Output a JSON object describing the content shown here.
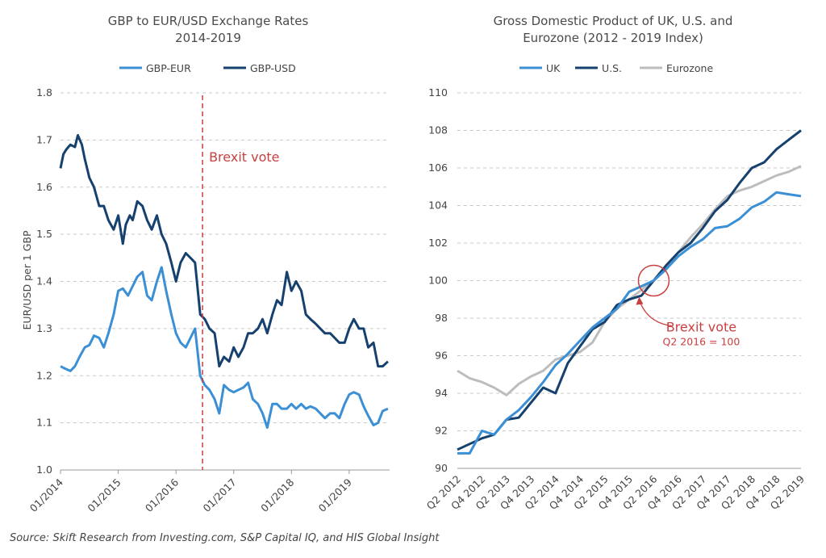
{
  "chart_data": [
    {
      "type": "line",
      "title": "GBP to EUR/USD Exchange Rates",
      "subtitle": "2014-2019",
      "ylabel": "EUR/USD per 1 GBP",
      "ylim": [
        1.0,
        1.8
      ],
      "yticks": [
        "1.0",
        "1.1",
        "1.2",
        "1.3",
        "1.4",
        "1.5",
        "1.6",
        "1.7",
        "1.8"
      ],
      "xticks": [
        {
          "label": "01/2014",
          "x": 2014.0
        },
        {
          "label": "01/2015",
          "x": 2015.0
        },
        {
          "label": "01/2016",
          "x": 2016.0
        },
        {
          "label": "01/2017",
          "x": 2017.0
        },
        {
          "label": "01/2018",
          "x": 2018.0
        },
        {
          "label": "01/2019",
          "x": 2019.0
        }
      ],
      "xlim": [
        2014.0,
        2019.7
      ],
      "legend_position": "top",
      "annotation": {
        "text": "Brexit vote",
        "x": 2016.46,
        "color": "#c94040"
      },
      "series": [
        {
          "name": "GBP-EUR",
          "color": "#3b8fd5",
          "x": [
            2014.0,
            2014.08,
            2014.17,
            2014.25,
            2014.33,
            2014.42,
            2014.5,
            2014.58,
            2014.67,
            2014.75,
            2014.83,
            2014.92,
            2015.0,
            2015.08,
            2015.17,
            2015.25,
            2015.33,
            2015.42,
            2015.5,
            2015.58,
            2015.67,
            2015.75,
            2015.83,
            2015.92,
            2016.0,
            2016.08,
            2016.17,
            2016.25,
            2016.33,
            2016.42,
            2016.5,
            2016.58,
            2016.67,
            2016.75,
            2016.83,
            2016.92,
            2017.0,
            2017.08,
            2017.17,
            2017.25,
            2017.33,
            2017.42,
            2017.5,
            2017.58,
            2017.67,
            2017.75,
            2017.83,
            2017.92,
            2018.0,
            2018.08,
            2018.17,
            2018.25,
            2018.33,
            2018.42,
            2018.5,
            2018.58,
            2018.67,
            2018.75,
            2018.83,
            2018.92,
            2019.0,
            2019.08,
            2019.17,
            2019.25,
            2019.33,
            2019.42,
            2019.5,
            2019.58,
            2019.67
          ],
          "values": [
            1.22,
            1.215,
            1.21,
            1.22,
            1.24,
            1.26,
            1.265,
            1.285,
            1.28,
            1.26,
            1.29,
            1.33,
            1.38,
            1.385,
            1.37,
            1.39,
            1.41,
            1.42,
            1.37,
            1.36,
            1.4,
            1.43,
            1.38,
            1.33,
            1.29,
            1.27,
            1.26,
            1.28,
            1.3,
            1.2,
            1.18,
            1.17,
            1.15,
            1.12,
            1.18,
            1.17,
            1.165,
            1.17,
            1.175,
            1.185,
            1.15,
            1.14,
            1.12,
            1.09,
            1.14,
            1.14,
            1.13,
            1.13,
            1.14,
            1.13,
            1.14,
            1.13,
            1.135,
            1.13,
            1.12,
            1.11,
            1.12,
            1.12,
            1.11,
            1.14,
            1.16,
            1.165,
            1.16,
            1.135,
            1.115,
            1.095,
            1.1,
            1.125,
            1.13
          ]
        },
        {
          "name": "GBP-USD",
          "color": "#16416e",
          "x": [
            2014.0,
            2014.05,
            2014.1,
            2014.17,
            2014.25,
            2014.3,
            2014.37,
            2014.42,
            2014.5,
            2014.58,
            2014.67,
            2014.75,
            2014.83,
            2014.92,
            2015.0,
            2015.08,
            2015.13,
            2015.2,
            2015.25,
            2015.33,
            2015.42,
            2015.5,
            2015.58,
            2015.67,
            2015.75,
            2015.83,
            2015.92,
            2016.0,
            2016.08,
            2016.17,
            2016.25,
            2016.33,
            2016.42,
            2016.5,
            2016.58,
            2016.67,
            2016.75,
            2016.83,
            2016.92,
            2017.0,
            2017.08,
            2017.17,
            2017.25,
            2017.33,
            2017.42,
            2017.5,
            2017.58,
            2017.67,
            2017.75,
            2017.83,
            2017.92,
            2018.0,
            2018.08,
            2018.17,
            2018.25,
            2018.33,
            2018.42,
            2018.5,
            2018.58,
            2018.67,
            2018.75,
            2018.83,
            2018.92,
            2019.0,
            2019.08,
            2019.17,
            2019.25,
            2019.33,
            2019.42,
            2019.5,
            2019.58,
            2019.67
          ],
          "values": [
            1.64,
            1.67,
            1.68,
            1.69,
            1.685,
            1.71,
            1.69,
            1.66,
            1.62,
            1.6,
            1.56,
            1.56,
            1.53,
            1.51,
            1.54,
            1.48,
            1.52,
            1.54,
            1.53,
            1.57,
            1.56,
            1.53,
            1.51,
            1.54,
            1.5,
            1.48,
            1.44,
            1.4,
            1.44,
            1.46,
            1.45,
            1.44,
            1.33,
            1.32,
            1.3,
            1.29,
            1.22,
            1.24,
            1.23,
            1.26,
            1.24,
            1.26,
            1.29,
            1.29,
            1.3,
            1.32,
            1.29,
            1.33,
            1.36,
            1.35,
            1.42,
            1.38,
            1.4,
            1.38,
            1.33,
            1.32,
            1.31,
            1.3,
            1.29,
            1.29,
            1.28,
            1.27,
            1.27,
            1.3,
            1.32,
            1.3,
            1.3,
            1.26,
            1.27,
            1.22,
            1.22,
            1.23
          ]
        }
      ]
    },
    {
      "type": "line",
      "title": "Gross Domestic Product of UK, U.S. and",
      "subtitle": "Eurozone (2012 - 2019 Index)",
      "ylim": [
        90,
        110
      ],
      "yticks": [
        "90",
        "92",
        "94",
        "96",
        "98",
        "100",
        "102",
        "104",
        "106",
        "108",
        "110"
      ],
      "categories": [
        "Q2 2012",
        "Q3 2012",
        "Q4 2012",
        "Q1 2013",
        "Q2 2013",
        "Q3 2013",
        "Q4 2013",
        "Q1 2014",
        "Q2 2014",
        "Q3 2014",
        "Q4 2014",
        "Q1 2015",
        "Q2 2015",
        "Q3 2015",
        "Q4 2015",
        "Q1 2016",
        "Q2 2016",
        "Q3 2016",
        "Q4 2016",
        "Q1 2017",
        "Q2 2017",
        "Q3 2017",
        "Q4 2017",
        "Q1 2018",
        "Q2 2018",
        "Q3 2018",
        "Q4 2018",
        "Q1 2019",
        "Q2 2019"
      ],
      "xtick_labels": [
        "Q2 2012",
        "Q4 2012",
        "Q2 2013",
        "Q4 2013",
        "Q2 2014",
        "Q4 2014",
        "Q2 2015",
        "Q4 2015",
        "Q2 2016",
        "Q4 2016",
        "Q2 2017",
        "Q4 2017",
        "Q2 2018",
        "Q4 2018",
        "Q2 2019"
      ],
      "legend_position": "top",
      "annotation": {
        "text": "Brexit vote",
        "subtext": "Q2 2016 = 100",
        "category": "Q2 2016",
        "value": 100,
        "color": "#c94040"
      },
      "series": [
        {
          "name": "UK",
          "color": "#3b8fd5",
          "values": [
            90.8,
            90.8,
            92.0,
            91.8,
            92.6,
            93.1,
            93.8,
            94.6,
            95.5,
            96.1,
            96.8,
            97.5,
            98.0,
            98.5,
            99.4,
            99.7,
            100.0,
            100.6,
            101.3,
            101.8,
            102.2,
            102.8,
            102.9,
            103.3,
            103.9,
            104.2,
            104.7,
            104.6,
            104.5
          ]
        },
        {
          "name": "U.S.",
          "color": "#16416e",
          "values": [
            91.0,
            91.3,
            91.6,
            91.8,
            92.6,
            92.7,
            93.5,
            94.3,
            94.0,
            95.6,
            96.5,
            97.4,
            97.8,
            98.7,
            99.0,
            99.2,
            100.0,
            100.8,
            101.5,
            102.0,
            102.8,
            103.7,
            104.3,
            105.2,
            106.0,
            106.3,
            107.0,
            107.5,
            108.0
          ]
        },
        {
          "name": "Eurozone",
          "color": "#bdbdbd",
          "values": [
            95.2,
            94.8,
            94.6,
            94.3,
            93.9,
            94.5,
            94.9,
            95.2,
            95.8,
            96.0,
            96.2,
            96.7,
            97.8,
            98.5,
            99.0,
            99.5,
            100.0,
            100.7,
            101.5,
            102.3,
            103.0,
            103.8,
            104.5,
            104.8,
            105.0,
            105.3,
            105.6,
            105.8,
            106.1
          ]
        }
      ]
    }
  ],
  "source": "Source: Skift Research from Investing.com, S&P Capital IQ, and HIS Global Insight"
}
